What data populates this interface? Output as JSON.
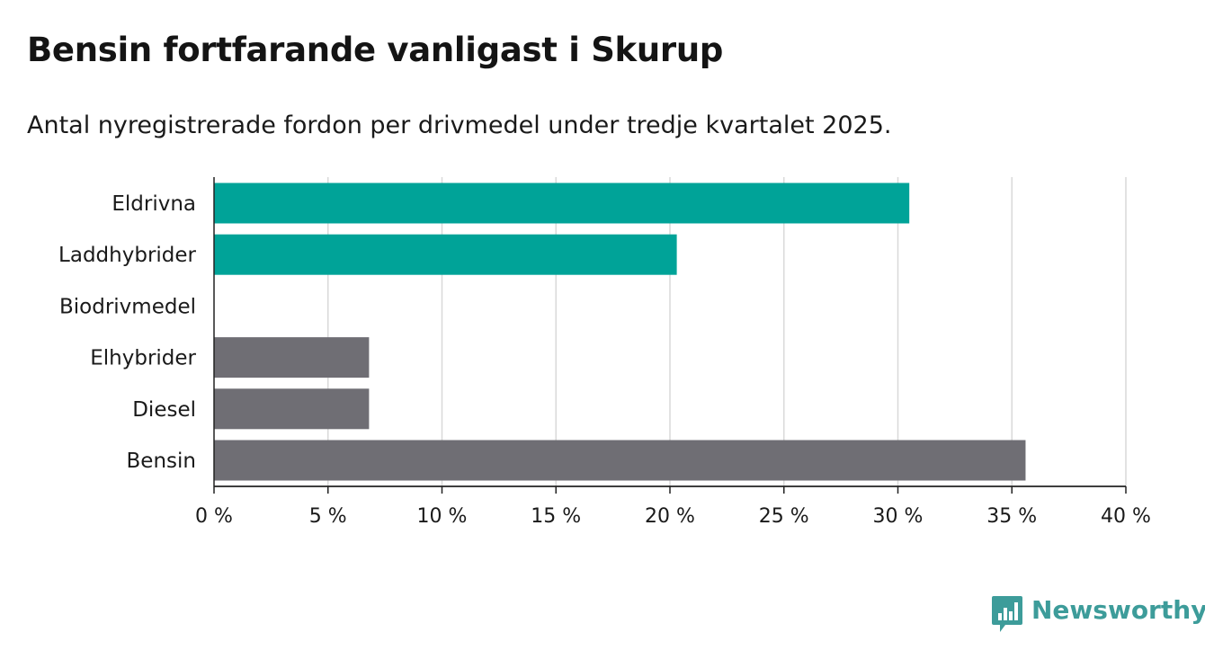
{
  "title": "Bensin fortfarande vanligast i Skurup",
  "subtitle": "Antal nyregistrerade fordon per drivmedel under tredje kvartalet 2025.",
  "brand": {
    "name": "Newsworthy",
    "color": "#3d9c9a"
  },
  "colors": {
    "highlight": "#00a398",
    "default": "#6f6e74",
    "grid": "#d9d9d9",
    "axis": "#222222"
  },
  "chart_data": {
    "type": "bar",
    "orientation": "horizontal",
    "title": "Bensin fortfarande vanligast i Skurup",
    "subtitle": "Antal nyregistrerade fordon per drivmedel under tredje kvartalet 2025.",
    "categories": [
      "Eldrivna",
      "Laddhybrider",
      "Biodrivmedel",
      "Elhybrider",
      "Diesel",
      "Bensin"
    ],
    "values": [
      30.5,
      20.3,
      0,
      6.8,
      6.8,
      35.6
    ],
    "highlighted": [
      true,
      true,
      false,
      false,
      false,
      false
    ],
    "unit": "%",
    "xlim": [
      0,
      40
    ],
    "ticks": [
      0,
      5,
      10,
      15,
      20,
      25,
      30,
      35,
      40
    ],
    "tick_labels": [
      "0 %",
      "5 %",
      "10 %",
      "15 %",
      "20 %",
      "25 %",
      "30 %",
      "35 %",
      "40 %"
    ],
    "xlabel": "",
    "ylabel": "",
    "grid": true
  }
}
